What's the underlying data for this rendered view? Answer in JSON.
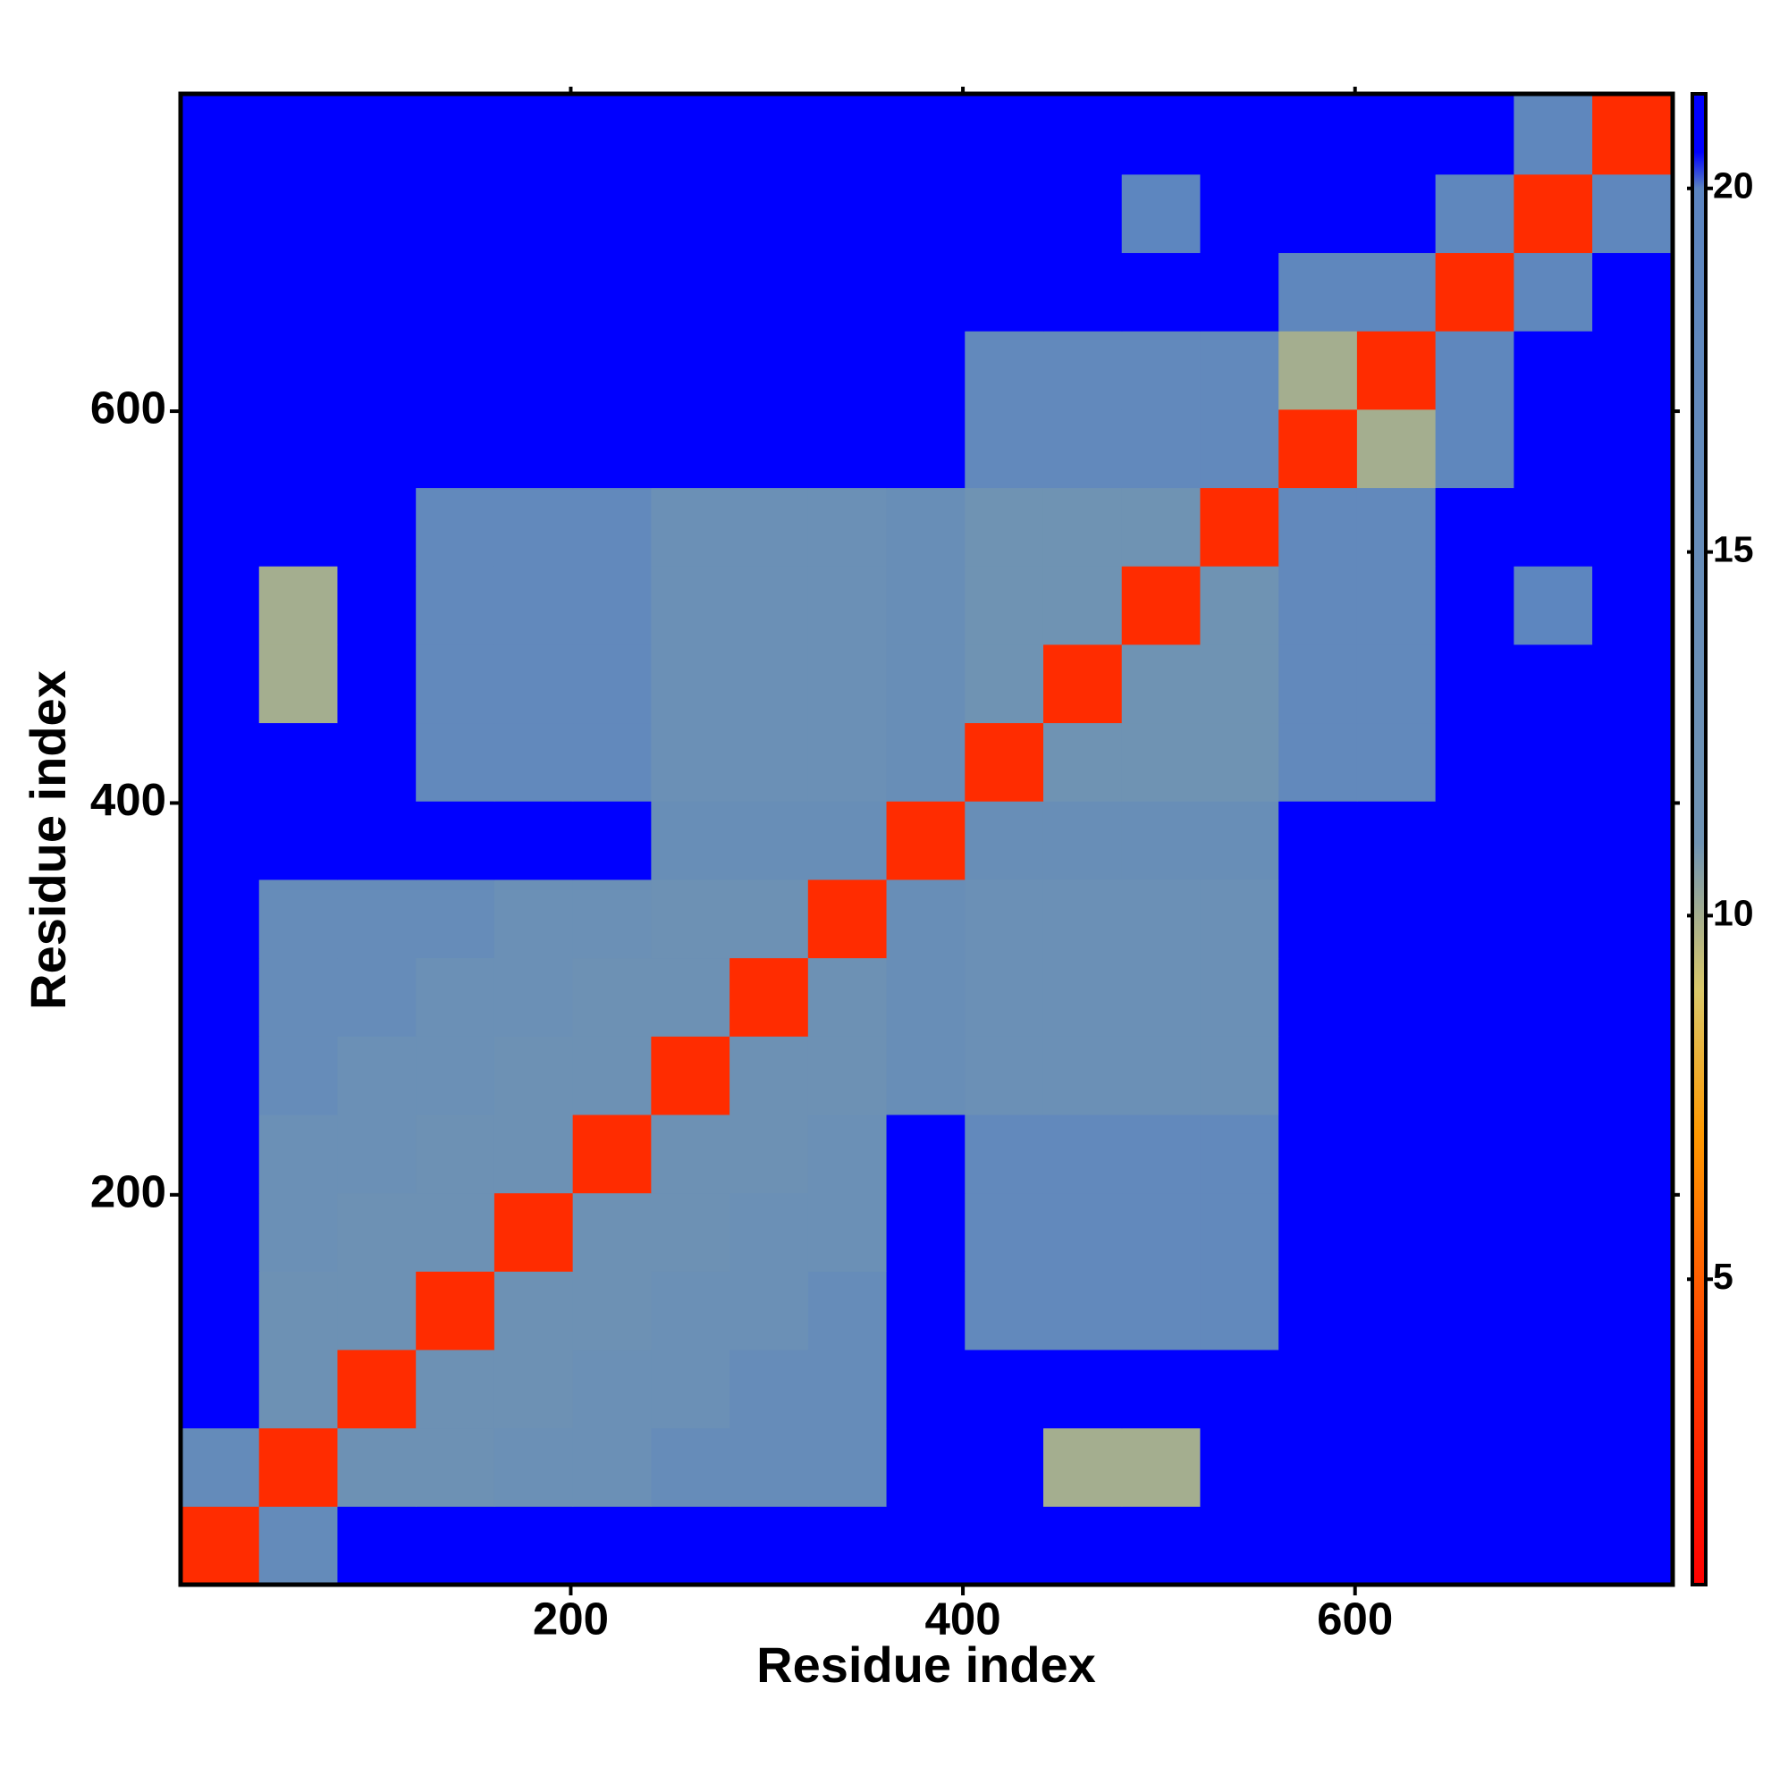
{
  "chart_data": {
    "type": "heatmap",
    "x_label": "Residue index",
    "y_label": "Residue index",
    "xlim": [
      1,
      762
    ],
    "ylim": [
      1,
      762
    ],
    "xticks": [
      200,
      400,
      600
    ],
    "yticks": [
      200,
      400,
      600
    ],
    "x_bins": [
      1,
      41,
      81,
      121,
      161,
      201,
      241,
      281,
      321,
      361,
      401,
      441,
      481,
      521,
      561,
      601,
      641,
      681,
      721,
      761
    ],
    "y_bins": [
      1,
      41,
      81,
      121,
      161,
      201,
      241,
      281,
      321,
      361,
      401,
      441,
      481,
      521,
      561,
      601,
      641,
      681,
      721,
      761
    ],
    "z": [
      [
        3,
        16,
        21,
        21,
        21,
        21,
        21,
        21,
        21,
        21,
        21,
        21,
        21,
        21,
        21,
        21,
        21,
        21,
        21
      ],
      [
        16,
        3,
        12,
        12,
        13,
        13,
        15,
        15,
        15,
        21,
        21,
        10,
        10,
        21,
        21,
        21,
        21,
        21,
        21
      ],
      [
        21,
        12,
        3,
        12,
        12,
        13,
        13,
        15,
        15,
        21,
        21,
        21,
        21,
        21,
        21,
        21,
        21,
        21,
        21
      ],
      [
        21,
        12,
        12,
        3,
        12,
        12,
        13,
        13,
        15,
        21,
        17,
        17,
        17,
        17,
        21,
        21,
        21,
        21,
        21
      ],
      [
        21,
        13,
        12,
        12,
        3,
        12,
        12,
        13,
        13,
        21,
        17,
        17,
        17,
        17,
        21,
        21,
        21,
        21,
        21
      ],
      [
        21,
        13,
        13,
        12,
        12,
        3,
        12,
        12,
        13,
        21,
        17,
        17,
        17,
        17,
        21,
        21,
        21,
        21,
        21
      ],
      [
        21,
        15,
        13,
        13,
        12,
        12,
        3,
        12,
        12,
        14,
        13,
        13,
        13,
        13,
        21,
        21,
        21,
        21,
        21
      ],
      [
        21,
        15,
        15,
        13,
        13,
        12,
        12,
        3,
        12,
        14,
        13,
        13,
        13,
        13,
        21,
        21,
        21,
        21,
        21
      ],
      [
        21,
        15,
        15,
        15,
        13,
        13,
        12,
        12,
        3,
        14,
        13,
        13,
        13,
        13,
        21,
        21,
        21,
        21,
        21
      ],
      [
        21,
        21,
        21,
        21,
        21,
        21,
        14,
        14,
        14,
        3,
        14,
        14,
        14,
        14,
        21,
        21,
        21,
        21,
        21
      ],
      [
        21,
        21,
        21,
        17,
        17,
        17,
        13,
        13,
        13,
        14,
        3,
        11,
        11,
        11,
        17,
        17,
        21,
        21,
        21
      ],
      [
        21,
        10,
        21,
        17,
        17,
        17,
        13,
        13,
        13,
        14,
        11,
        3,
        11,
        11,
        17,
        17,
        21,
        21,
        21
      ],
      [
        21,
        10,
        21,
        17,
        17,
        17,
        13,
        13,
        13,
        14,
        11,
        11,
        3,
        11,
        17,
        17,
        21,
        19,
        21
      ],
      [
        21,
        21,
        21,
        17,
        17,
        17,
        13,
        13,
        13,
        14,
        11,
        11,
        11,
        3,
        17,
        17,
        21,
        21,
        21
      ],
      [
        21,
        21,
        21,
        21,
        21,
        21,
        21,
        21,
        21,
        21,
        17,
        17,
        17,
        17,
        3,
        10,
        18,
        21,
        21
      ],
      [
        21,
        21,
        21,
        21,
        21,
        21,
        21,
        21,
        21,
        21,
        17,
        17,
        17,
        17,
        10,
        3,
        18,
        21,
        21
      ],
      [
        21,
        21,
        21,
        21,
        21,
        21,
        21,
        21,
        21,
        21,
        21,
        21,
        21,
        21,
        18,
        18,
        3,
        18,
        21
      ],
      [
        21,
        21,
        21,
        21,
        21,
        21,
        21,
        21,
        21,
        21,
        21,
        21,
        19,
        21,
        21,
        21,
        18,
        3,
        18
      ],
      [
        21,
        21,
        21,
        21,
        21,
        21,
        21,
        21,
        21,
        21,
        21,
        21,
        21,
        21,
        21,
        21,
        21,
        18,
        3
      ]
    ],
    "clim": [
      0.8,
      21.3
    ],
    "colorbar_ticks": [
      5,
      10,
      15,
      20
    ],
    "colorscale": [
      [
        0.8,
        "#ff0000"
      ],
      [
        4,
        "#ff4000"
      ],
      [
        7,
        "#ff9900"
      ],
      [
        9,
        "#d9c86a"
      ],
      [
        11,
        "#6f93b3"
      ],
      [
        20,
        "#5b84c0"
      ],
      [
        20.5,
        "#0000ff"
      ],
      [
        21.3,
        "#0000ff"
      ]
    ]
  }
}
